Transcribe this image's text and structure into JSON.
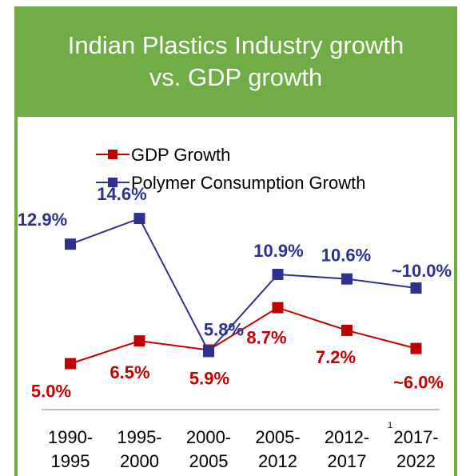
{
  "chart_data": {
    "type": "line",
    "title_lines": [
      "Indian Plastics Industry growth",
      "vs. GDP growth"
    ],
    "categories": [
      [
        "1990-",
        "1995"
      ],
      [
        "1995-",
        "2000"
      ],
      [
        "2000-",
        "2005"
      ],
      [
        "2005-",
        "2012"
      ],
      [
        "2012-",
        "2017"
      ],
      [
        "2017-",
        "2022"
      ]
    ],
    "series": [
      {
        "name": "GDP Growth",
        "color": "#c00000",
        "values": [
          5.0,
          6.5,
          5.9,
          8.7,
          7.2,
          6.0
        ],
        "labels": [
          "5.0%",
          "6.5%",
          "5.9%",
          "8.7%",
          "7.2%",
          "~6.0%"
        ]
      },
      {
        "name": "Polymer Consumption Growth",
        "color": "#2e3192",
        "values": [
          12.9,
          14.6,
          5.8,
          10.9,
          10.6,
          10.0
        ],
        "labels": [
          "12.9%",
          "14.6%",
          "5.8%",
          "10.9%",
          "10.6%",
          "~10.0%"
        ]
      }
    ],
    "legend_position": "top-left",
    "footnote_marker": "1",
    "grid": false,
    "accent_color": "#70ad47"
  }
}
